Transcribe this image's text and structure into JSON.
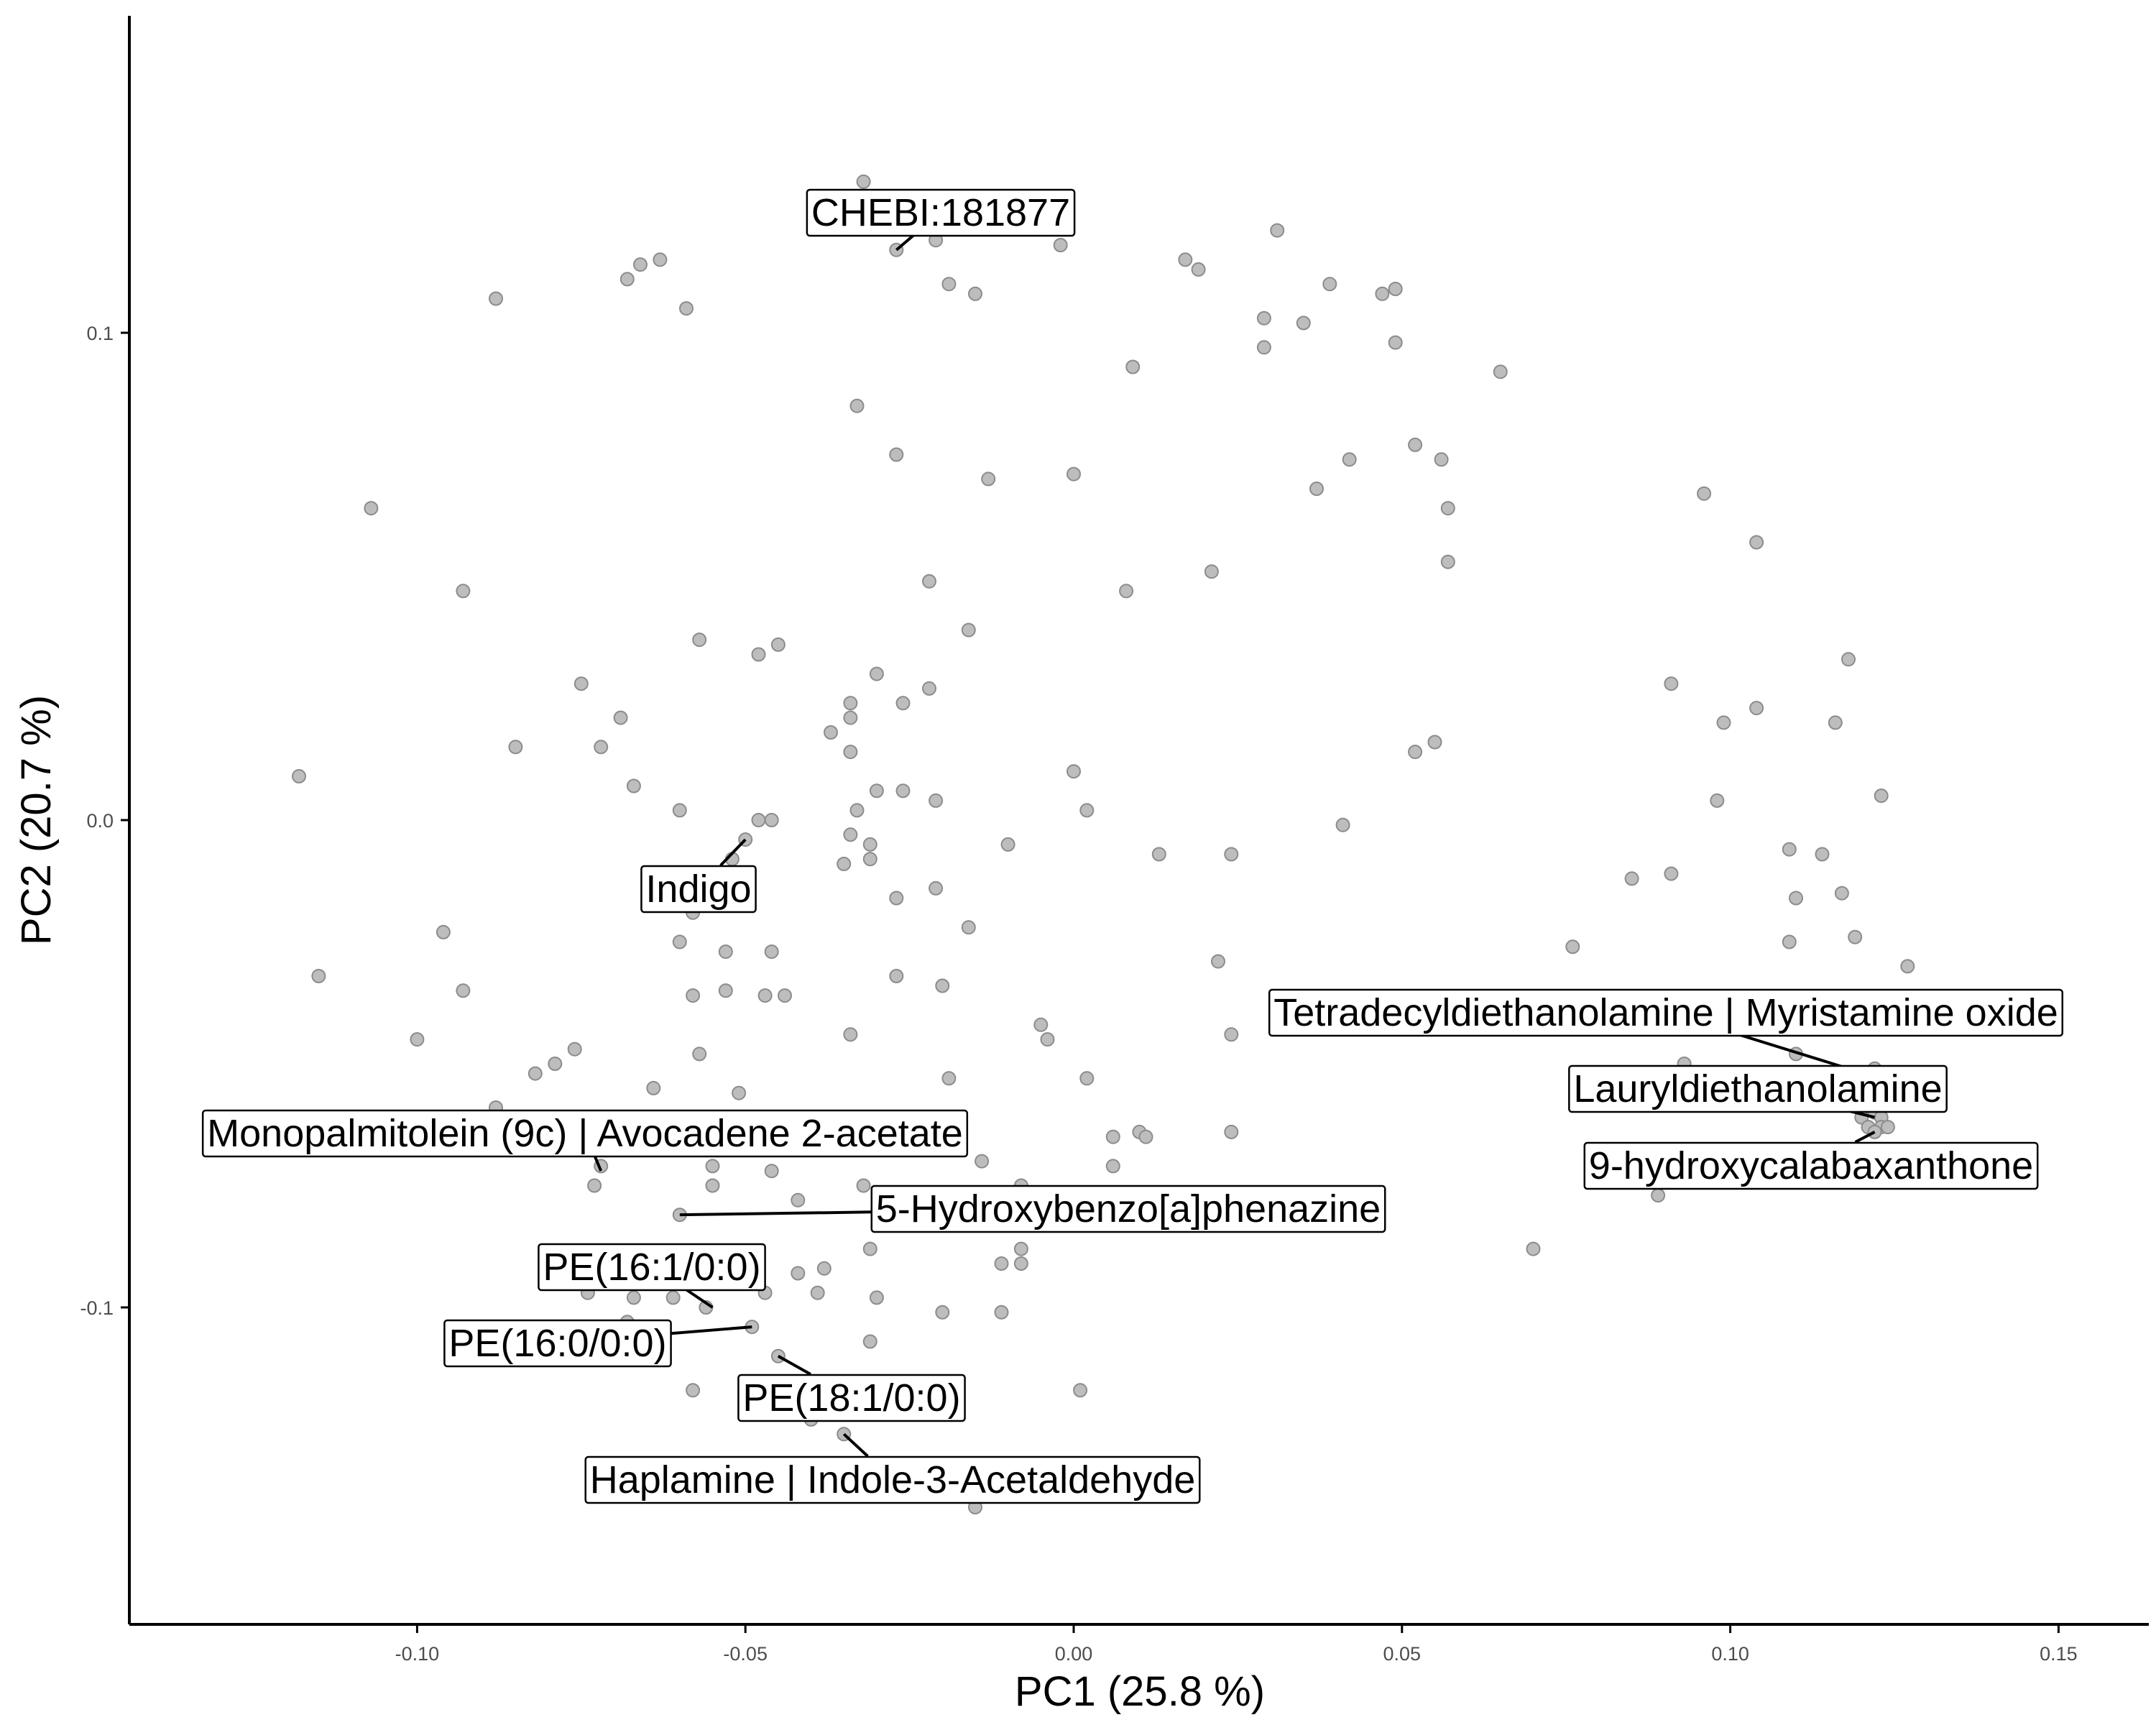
{
  "chart_data": {
    "type": "scatter",
    "xlabel": "PC1 (25.8 %)",
    "ylabel": "PC2 (20.7 %)",
    "xlim": [
      -0.144,
      0.164
    ],
    "ylim": [
      -0.165,
      0.164
    ],
    "x_ticks": [
      -0.1,
      -0.05,
      0.0,
      0.05,
      0.1,
      0.15
    ],
    "x_tick_labels": [
      "-0.10",
      "-0.05",
      "0.00",
      "0.05",
      "0.10",
      "0.15"
    ],
    "y_ticks": [
      -0.1,
      0.0,
      0.1
    ],
    "y_tick_labels": [
      "-0.1",
      "0.0",
      "0.1"
    ],
    "grid": false,
    "point_color": "#bdbdbd",
    "points": [
      [
        -0.032,
        0.131
      ],
      [
        -0.027,
        0.117
      ],
      [
        -0.021,
        0.119
      ],
      [
        -0.002,
        0.118
      ],
      [
        -0.063,
        0.115
      ],
      [
        -0.066,
        0.114
      ],
      [
        -0.068,
        0.111
      ],
      [
        -0.088,
        0.107
      ],
      [
        -0.059,
        0.105
      ],
      [
        -0.019,
        0.11
      ],
      [
        -0.015,
        0.108
      ],
      [
        0.017,
        0.115
      ],
      [
        0.019,
        0.113
      ],
      [
        0.031,
        0.121
      ],
      [
        0.039,
        0.11
      ],
      [
        0.029,
        0.103
      ],
      [
        0.035,
        0.102
      ],
      [
        0.029,
        0.097
      ],
      [
        0.047,
        0.108
      ],
      [
        0.049,
        0.109
      ],
      [
        0.049,
        0.098
      ],
      [
        0.065,
        0.092
      ],
      [
        0.009,
        0.093
      ],
      [
        -0.033,
        0.085
      ],
      [
        -0.027,
        0.075
      ],
      [
        -0.013,
        0.07
      ],
      [
        0.0,
        0.071
      ],
      [
        0.037,
        0.068
      ],
      [
        0.042,
        0.074
      ],
      [
        0.052,
        0.077
      ],
      [
        0.056,
        0.074
      ],
      [
        0.057,
        0.064
      ],
      [
        0.057,
        0.053
      ],
      [
        0.021,
        0.051
      ],
      [
        -0.022,
        0.049
      ],
      [
        -0.107,
        0.064
      ],
      [
        -0.093,
        0.047
      ],
      [
        -0.057,
        0.037
      ],
      [
        -0.048,
        0.034
      ],
      [
        -0.045,
        0.036
      ],
      [
        -0.016,
        0.039
      ],
      [
        0.008,
        0.047
      ],
      [
        -0.075,
        0.028
      ],
      [
        -0.069,
        0.021
      ],
      [
        -0.085,
        0.015
      ],
      [
        -0.072,
        0.015
      ],
      [
        -0.03,
        0.03
      ],
      [
        -0.034,
        0.024
      ],
      [
        -0.026,
        0.024
      ],
      [
        -0.022,
        0.027
      ],
      [
        -0.037,
        0.018
      ],
      [
        -0.034,
        0.021
      ],
      [
        -0.034,
        0.014
      ],
      [
        -0.118,
        0.009
      ],
      [
        -0.067,
        0.007
      ],
      [
        -0.06,
        0.002
      ],
      [
        -0.048,
        0.0
      ],
      [
        -0.046,
        0.0
      ],
      [
        -0.033,
        0.002
      ],
      [
        -0.03,
        0.006
      ],
      [
        -0.026,
        0.006
      ],
      [
        -0.021,
        0.004
      ],
      [
        0.0,
        0.01
      ],
      [
        0.002,
        0.002
      ],
      [
        0.041,
        -0.001
      ],
      [
        0.052,
        0.014
      ],
      [
        0.055,
        0.016
      ],
      [
        -0.034,
        -0.003
      ],
      [
        -0.035,
        -0.009
      ],
      [
        -0.031,
        -0.005
      ],
      [
        -0.031,
        -0.008
      ],
      [
        -0.01,
        -0.005
      ],
      [
        0.013,
        -0.007
      ],
      [
        0.024,
        -0.007
      ],
      [
        -0.05,
        -0.004
      ],
      [
        -0.052,
        -0.008
      ],
      [
        -0.027,
        -0.016
      ],
      [
        -0.021,
        -0.014
      ],
      [
        -0.016,
        -0.022
      ],
      [
        -0.058,
        -0.019
      ],
      [
        -0.06,
        -0.025
      ],
      [
        -0.053,
        -0.027
      ],
      [
        -0.046,
        -0.027
      ],
      [
        -0.096,
        -0.023
      ],
      [
        -0.115,
        -0.032
      ],
      [
        -0.093,
        -0.035
      ],
      [
        -0.058,
        -0.036
      ],
      [
        -0.053,
        -0.035
      ],
      [
        -0.047,
        -0.036
      ],
      [
        -0.044,
        -0.036
      ],
      [
        -0.027,
        -0.032
      ],
      [
        -0.02,
        -0.034
      ],
      [
        0.022,
        -0.029
      ],
      [
        -0.034,
        -0.044
      ],
      [
        -0.005,
        -0.042
      ],
      [
        -0.004,
        -0.045
      ],
      [
        -0.1,
        -0.045
      ],
      [
        -0.076,
        -0.047
      ],
      [
        -0.079,
        -0.05
      ],
      [
        -0.082,
        -0.052
      ],
      [
        -0.064,
        -0.055
      ],
      [
        -0.057,
        -0.048
      ],
      [
        -0.051,
        -0.056
      ],
      [
        -0.019,
        -0.053
      ],
      [
        0.002,
        -0.053
      ],
      [
        0.024,
        -0.044
      ],
      [
        -0.088,
        -0.059
      ],
      [
        -0.072,
        -0.071
      ],
      [
        -0.073,
        -0.075
      ],
      [
        -0.055,
        -0.071
      ],
      [
        -0.055,
        -0.075
      ],
      [
        -0.046,
        -0.072
      ],
      [
        -0.042,
        -0.078
      ],
      [
        -0.032,
        -0.075
      ],
      [
        -0.014,
        -0.07
      ],
      [
        -0.008,
        -0.075
      ],
      [
        0.006,
        -0.065
      ],
      [
        0.01,
        -0.064
      ],
      [
        0.011,
        -0.065
      ],
      [
        0.006,
        -0.071
      ],
      [
        0.024,
        -0.064
      ],
      [
        0.002,
        -0.083
      ],
      [
        -0.06,
        -0.081
      ],
      [
        -0.031,
        -0.088
      ],
      [
        -0.038,
        -0.092
      ],
      [
        -0.042,
        -0.093
      ],
      [
        -0.011,
        -0.091
      ],
      [
        -0.008,
        -0.088
      ],
      [
        -0.008,
        -0.091
      ],
      [
        -0.074,
        -0.097
      ],
      [
        -0.067,
        -0.098
      ],
      [
        -0.061,
        -0.098
      ],
      [
        -0.056,
        -0.1
      ],
      [
        -0.047,
        -0.097
      ],
      [
        -0.039,
        -0.097
      ],
      [
        -0.03,
        -0.098
      ],
      [
        -0.02,
        -0.101
      ],
      [
        -0.011,
        -0.101
      ],
      [
        -0.049,
        -0.104
      ],
      [
        -0.068,
        -0.103
      ],
      [
        -0.045,
        -0.11
      ],
      [
        -0.031,
        -0.107
      ],
      [
        -0.058,
        -0.117
      ],
      [
        -0.048,
        -0.117
      ],
      [
        -0.04,
        -0.123
      ],
      [
        -0.035,
        -0.126
      ],
      [
        0.001,
        -0.117
      ],
      [
        -0.015,
        -0.141
      ],
      [
        0.076,
        -0.026
      ],
      [
        0.085,
        -0.012
      ],
      [
        0.091,
        -0.011
      ],
      [
        0.07,
        -0.088
      ],
      [
        0.089,
        -0.077
      ],
      [
        0.093,
        -0.05
      ],
      [
        0.091,
        0.028
      ],
      [
        0.096,
        0.067
      ],
      [
        0.098,
        0.004
      ],
      [
        0.099,
        0.02
      ],
      [
        0.104,
        0.057
      ],
      [
        0.104,
        0.023
      ],
      [
        0.109,
        -0.006
      ],
      [
        0.109,
        -0.025
      ],
      [
        0.11,
        -0.016
      ],
      [
        0.114,
        -0.007
      ],
      [
        0.11,
        -0.048
      ],
      [
        0.116,
        0.02
      ],
      [
        0.117,
        -0.015
      ],
      [
        0.118,
        0.033
      ],
      [
        0.119,
        -0.024
      ],
      [
        0.123,
        0.005
      ],
      [
        0.127,
        -0.03
      ],
      [
        0.122,
        -0.051
      ],
      [
        0.12,
        -0.061
      ],
      [
        0.121,
        -0.063
      ],
      [
        0.122,
        -0.06
      ],
      [
        0.123,
        -0.061
      ],
      [
        0.123,
        -0.063
      ],
      [
        0.124,
        -0.063
      ],
      [
        0.122,
        -0.064
      ]
    ],
    "annotations": [
      {
        "text": "CHEBI:181877",
        "point": [
          -0.027,
          0.117
        ]
      },
      {
        "text": "Indigo",
        "point": [
          -0.05,
          -0.004
        ]
      },
      {
        "text": "Tetradecyldiethanolamine | Myristamine oxide",
        "point": [
          0.118,
          -0.051
        ]
      },
      {
        "text": "Lauryldiethanolamine",
        "point": [
          0.122,
          -0.061
        ]
      },
      {
        "text": "9-hydroxycalabaxanthone",
        "point": [
          0.122,
          -0.064
        ]
      },
      {
        "text": "Monopalmitolein (9c) | Avocadene 2-acetate",
        "point": [
          -0.072,
          -0.072
        ]
      },
      {
        "text": "5-Hydroxybenzo[a]phenazine",
        "point": [
          -0.06,
          -0.081
        ]
      },
      {
        "text": "PE(16:1/0:0)",
        "point": [
          -0.055,
          -0.1
        ]
      },
      {
        "text": "PE(16:0/0:0)",
        "point": [
          -0.049,
          -0.104
        ]
      },
      {
        "text": "PE(18:1/0:0)",
        "point": [
          -0.045,
          -0.11
        ]
      },
      {
        "text": "Haplamine | Indole-3-Acetaldehyde",
        "point": [
          -0.035,
          -0.126
        ]
      }
    ]
  }
}
